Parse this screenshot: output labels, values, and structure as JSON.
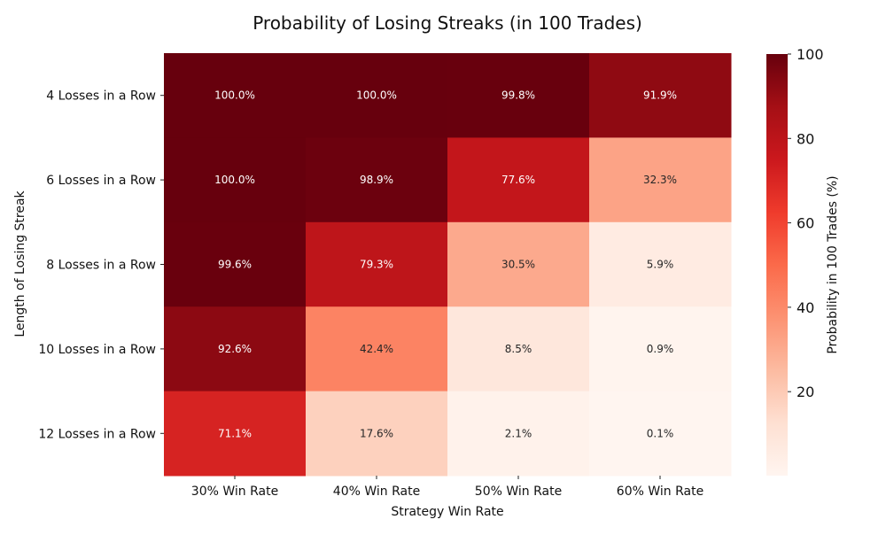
{
  "chart_data": {
    "type": "heatmap",
    "title": "Probability of Losing Streaks (in 100 Trades)",
    "xlabel": "Strategy Win Rate",
    "ylabel": "Length of Losing Streak",
    "x_categories": [
      "30% Win Rate",
      "40% Win Rate",
      "50% Win Rate",
      "60% Win Rate"
    ],
    "y_categories": [
      "4 Losses in a Row",
      "6 Losses in a Row",
      "8 Losses in a Row",
      "10 Losses in a Row",
      "12 Losses in a Row"
    ],
    "values": [
      [
        100.0,
        100.0,
        99.8,
        91.9
      ],
      [
        100.0,
        98.9,
        77.6,
        32.3
      ],
      [
        99.6,
        79.3,
        30.5,
        5.9
      ],
      [
        92.6,
        42.4,
        8.5,
        0.9
      ],
      [
        71.1,
        17.6,
        2.1,
        0.1
      ]
    ],
    "value_format": "{:.1f}%",
    "colormap": "Reds",
    "colormap_stops": [
      "#fff5f0",
      "#fee0d2",
      "#fcbba1",
      "#fc9272",
      "#fb6a4a",
      "#ef3b2c",
      "#cb181d",
      "#a50f15",
      "#67000d"
    ],
    "color_range": [
      0.1,
      100
    ],
    "colorbar": {
      "label": "Probability in 100 Trades (%)",
      "ticks": [
        20,
        40,
        60,
        80,
        100
      ]
    }
  }
}
